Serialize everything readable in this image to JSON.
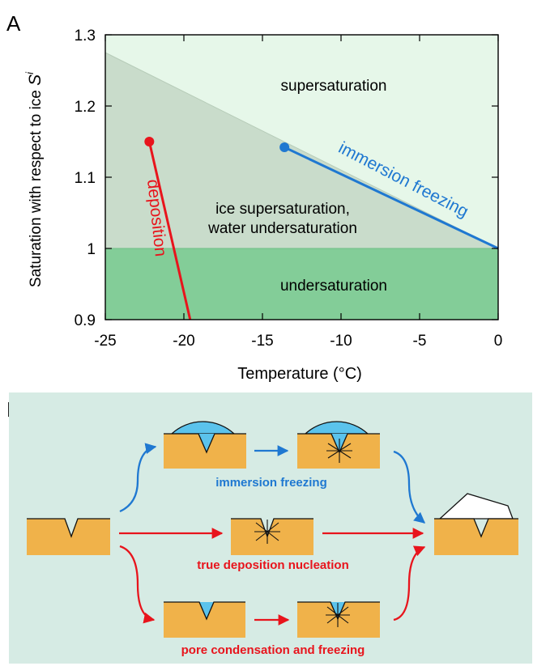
{
  "panel_a": {
    "letter": "A",
    "chart_data": {
      "type": "line",
      "xlabel": "Temperature (°C)",
      "ylabel_main": "Saturation with respect to ice ",
      "ylabel_symbol": "S",
      "ylabel_sup": "i",
      "xlim": [
        -25,
        0
      ],
      "ylim": [
        0.9,
        1.3
      ],
      "x_ticks": [
        -25,
        -20,
        -15,
        -10,
        -5,
        0
      ],
      "x_tick_labels": [
        "-25",
        "-20",
        "-15",
        "-10",
        "-5",
        "0"
      ],
      "y_ticks": [
        0.9,
        1.0,
        1.1,
        1.2,
        1.3
      ],
      "y_tick_labels": [
        "0.9",
        "1",
        "1.1",
        "1.2",
        "1.3"
      ],
      "grid": false,
      "regions": {
        "supersaturation_color": "#e6f7e9",
        "ice_super_color": "#c9dccb",
        "undersaturation_color": "#83cd98",
        "water_saturation_line": [
          [
            -25,
            1.275
          ],
          [
            0,
            1.0
          ]
        ]
      },
      "series": [
        {
          "name": "deposition",
          "color": "#e8141c",
          "x": [
            -22.2,
            -19.6
          ],
          "y": [
            1.15,
            0.9
          ],
          "marker_at_start": true
        },
        {
          "name": "immersion freezing",
          "color": "#1f78d1",
          "x": [
            -13.6,
            0
          ],
          "y": [
            1.142,
            1.0
          ],
          "marker_at_start": true
        }
      ],
      "annotations": {
        "supersaturation": "supersaturation",
        "ice_super_line1": "ice supersaturation,",
        "ice_super_line2": "water undersaturation",
        "undersaturation": "undersaturation"
      }
    }
  },
  "panel_b": {
    "letter": "B",
    "background": "#d6ebe4",
    "substrate_color": "#f0b24a",
    "water_color": "#5bc3ec",
    "path_colors": {
      "immersion": "#1f78d1",
      "deposition": "#e8141c"
    },
    "labels": {
      "immersion": "immersion freezing",
      "deposition": "true deposition nucleation",
      "pore": "pore condensation and freezing"
    }
  }
}
